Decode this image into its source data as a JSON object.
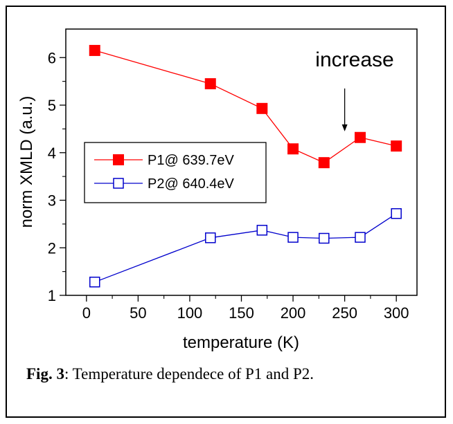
{
  "chart_data": {
    "type": "line",
    "xlabel": "temperature (K)",
    "ylabel": "norm XMLD (a.u.)",
    "xlim": [
      -20,
      320
    ],
    "ylim": [
      1,
      6.6
    ],
    "xticks": [
      0,
      50,
      100,
      150,
      200,
      250,
      300
    ],
    "yticks": [
      1,
      2,
      3,
      4,
      5,
      6
    ],
    "grid": false,
    "legend_position": "left-middle",
    "series": [
      {
        "name": "P1@ 639.7eV",
        "marker": "filled-square",
        "color": "#ff0000",
        "line_color": "#ff0000",
        "x": [
          8,
          120,
          170,
          200,
          230,
          265,
          300
        ],
        "y": [
          6.15,
          5.45,
          4.93,
          4.08,
          3.79,
          4.32,
          4.14
        ]
      },
      {
        "name": "P2@ 640.4eV",
        "marker": "open-square",
        "color": "#0000cc",
        "line_color": "#0000cc",
        "x": [
          8,
          120,
          170,
          200,
          230,
          265,
          300
        ],
        "y": [
          1.28,
          2.21,
          2.37,
          2.22,
          2.2,
          2.22,
          2.72
        ]
      }
    ],
    "annotation": {
      "text": "increase",
      "arrow_x": 250,
      "arrow_from_y": 5.35,
      "arrow_to_y": 4.45
    }
  },
  "caption": {
    "label": "Fig. 3",
    "text": ": Temperature dependece of P1 and P2."
  }
}
